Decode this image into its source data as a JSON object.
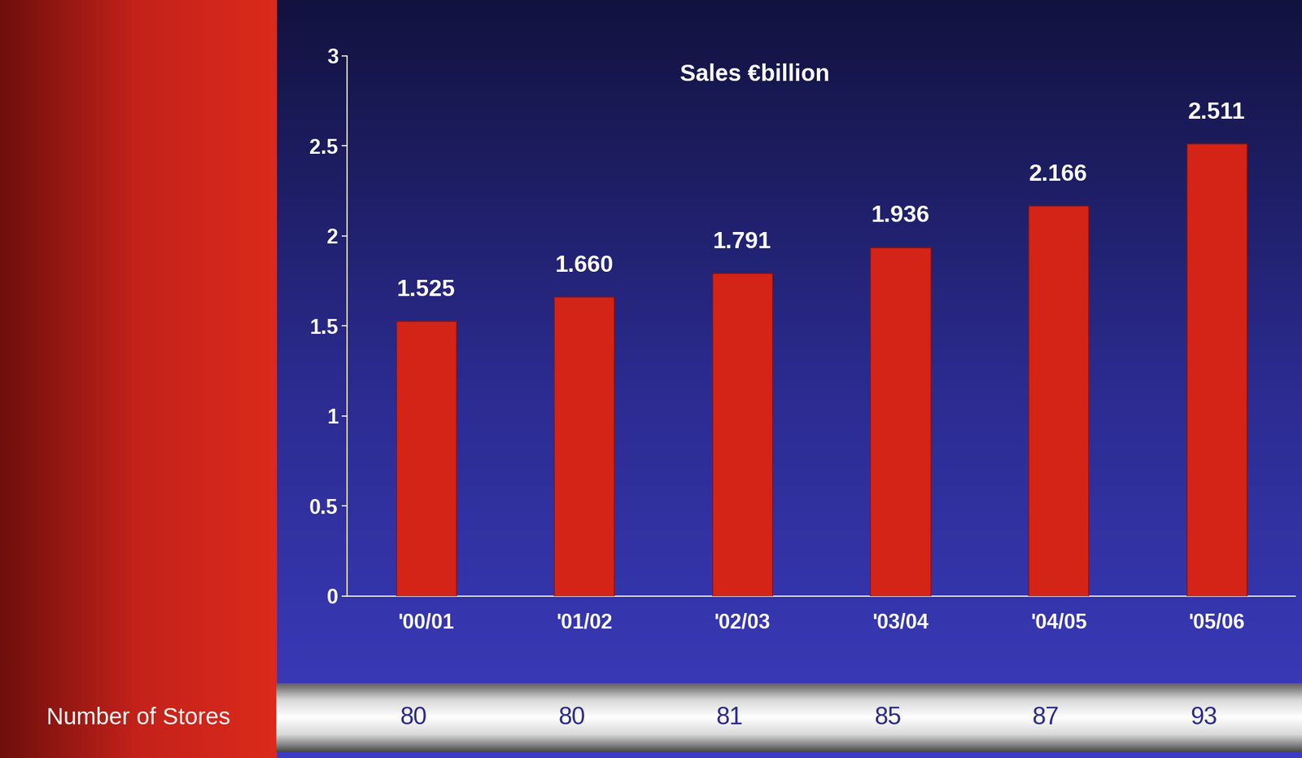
{
  "chart_data": {
    "type": "bar",
    "title": "Sales €billion",
    "categories": [
      "'00/01",
      "'01/02",
      "'02/03",
      "'03/04",
      "'04/05",
      "'05/06"
    ],
    "values": [
      1.525,
      1.66,
      1.791,
      1.936,
      2.166,
      2.511
    ],
    "value_labels": [
      "1.525",
      "1.660",
      "1.791",
      "1.936",
      "2.166",
      "2.511"
    ],
    "data_labels": true,
    "color": "#d42418",
    "ylim": [
      0,
      3
    ],
    "yticks": [
      0,
      0.5,
      1,
      1.5,
      2,
      2.5,
      3
    ],
    "grid": false,
    "stores": {
      "label": "Number of Stores",
      "values": [
        80,
        80,
        81,
        85,
        87,
        93
      ]
    }
  }
}
